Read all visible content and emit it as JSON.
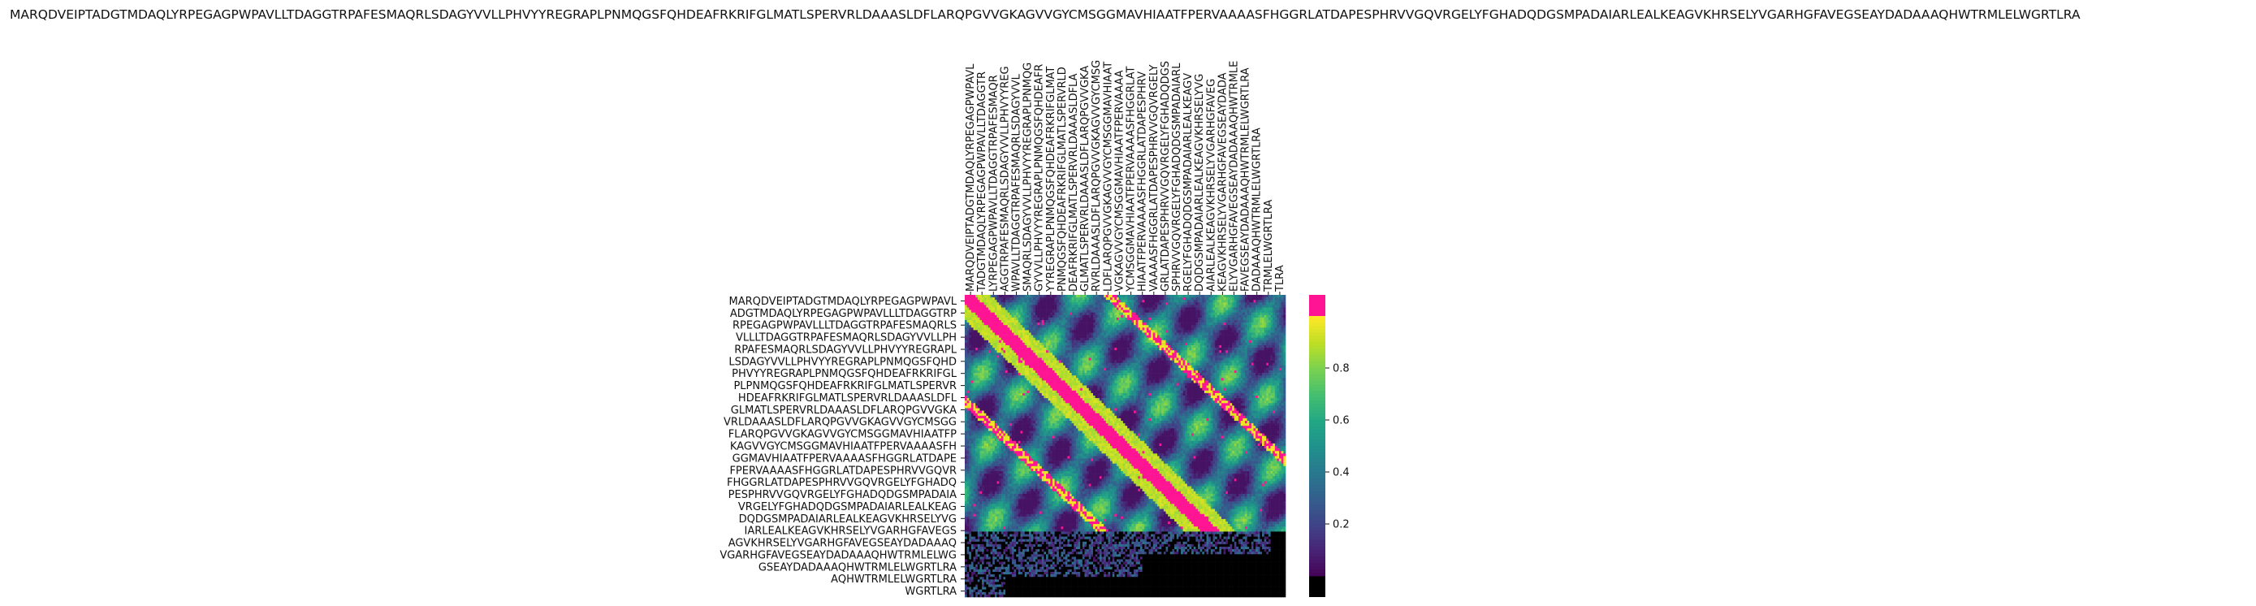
{
  "chart_data": {
    "type": "heatmap",
    "title": "MARQDVEIPTADGTMDAQLYRPEGAGPWPAVLLTDAGGTRPAFESMAQRLSDAGYVVLLPHVYYREGRAPLPNMQGSFQHDEAFRKRIFGLMATLSPERVRLDAAASLDFLARQPGVVGKAGVVGYCMSGGMAVHIAATFPERVAAAASFHGGRLATDAPESPHRVVGQVRGELYFGHADQDGSMPADAIARLEALKEAGVKHRSELYVGARHGFAVEGSEAYDADAAAQHWTRMLELWGRTLRA",
    "column_labels": [
      "MARQDVEIPTADGTMDAQLYRPEGAGPWPAVL",
      "TADGTMDAQLYRPEGAGPWPAVLLTDAGGTR",
      "LYRPEGAGPWPAVLLTDAGGTRPAFESMAQR",
      "AGGTRPAFESMAQRLSDAGYVVLLPHVYYREG",
      "WPAVLLTDAGGTRPAFESMAQRLSDAGYVVL",
      "SMAQRLSDAGYVVLLPHVYYREGRAPLPNMQG",
      "GYVVLLPHVYYREGRAPLPNMQGSFQHDEAFR",
      "YYREGRAPLPNMQGSFQHDEAFRKRIFGLMAT",
      "PNMQGSFQHDEAFRKRIFGLMATLSPERVRLD",
      "DEAFRKRIFGLMATLSPERVRLDAAASLDFLA",
      "GLMATLSPERVRLDAAASLDFLARQPGVVGKA",
      "RVRLDAAASLDFLARQPGVVGKAGVVGYCMSG",
      "LDFLARQPGVVGKAGVVGYCMSGGMAVHIAAT",
      "VGKAGVVGYCMSGGMAVHIAATFPERVAAAA",
      "YCMSGGMAVHIAATFPERVAAAASFHGGRLAT",
      "HIAATFPERVAAAASFHGGRLATDAPESPHRV",
      "VAAAASFHGGRLATDAPESPHRVVGQVRGELY",
      "GRLATDAPESPHRVVGQVRGELYFGHADQDGS",
      "SPHRVVGQVRGELYFGHADQDGSMPADAIARL",
      "RGELYFGHADQDGSMPADAIARLEALKEAGV",
      "DQDGSMPADAIARLEALKEAGVKHRSELYVG",
      "AIARLEALKEAGVKHRSELYVGARHGFAVEG",
      "KEAGVKHRSELYVGARHGFAVEGSEAYDADA",
      "ELYVGARHGFAVEGSEAYDADAAAQHWTRMLE",
      "FAVEGSEAYDADAAAQHWTRMLELWGRTLRA",
      "DADAAAQHWTRMLELWGRTLRA",
      "TRMLELWGRTLRA",
      "TLRA"
    ],
    "row_labels": [
      "MARQDVEIPTADGTMDAQLYRPEGAGPWPAVL",
      "ADGTMDAQLYRPEGAGPWPAVLLLTDAGGTRP",
      "RPEGAGPWPAVLLLTDAGGTRPAFESMAQRLS",
      "VLLLTDAGGTRPAFESMAQRLSDAGYVVLLPH",
      "RPAFESMAQRLSDAGYVVLLPHVYYREGRAPL",
      "LSDAGYVVLLPHVYYREGRAPLPNMQGSFQHD",
      "PHVYYREGRAPLPNMQGSFQHDEAFRKRIFGL",
      "PLPNMQGSFQHDEAFRKRIFGLMATLSPERVR",
      "HDEAFRKRIFGLMATLSPERVRLDAAASLDFL",
      "GLMATLSPERVRLDAAASLDFLARQPGVVGKA",
      "VRLDAAASLDFLARQPGVVGKAGVVGYCMSGG",
      "FLARQPGVVGKAGVVGYCMSGGMAVHIAATFP",
      "KAGVVGYCMSGGMAVHIAATFPERVAAAASFH",
      "GGMAVHIAATFPERVAAAASFHGGRLATDAPE",
      "FPERVAAAASFHGGRLATDAPESPHRVVGQVR",
      "FHGGRLATDAPESPHRVVGQVRGELYFGHADQ",
      "PESPHRVVGQVRGELYFGHADQDGSMPADAIA",
      "VRGELYFGHADQDGSMPADAIARLEALKEAG",
      "DQDGSMPADAIARLEALKEAGVKHRSELYVG",
      "IARLEALKEAGVKHRSELYVGARHGFAVEGS",
      "AGVKHRSELYVGARHGFAVEGSEAYDADAAAQ",
      "VGARHGFAVEGSEAYDADAAAQHWTRMLELWG",
      "GSEAYDADAAAQHWTRMLELWGRTLRA",
      "AQHWTRMLELWGRTLRA",
      "WGRTLRA"
    ],
    "colorbar": {
      "ticks": [
        0.2,
        0.4,
        0.6,
        0.8
      ],
      "range": [
        0.0,
        1.0
      ],
      "colormap": "viridis",
      "overflow_color": "#ff1493",
      "underflow_color": "#000000"
    },
    "xlabel": "",
    "ylabel": ""
  }
}
